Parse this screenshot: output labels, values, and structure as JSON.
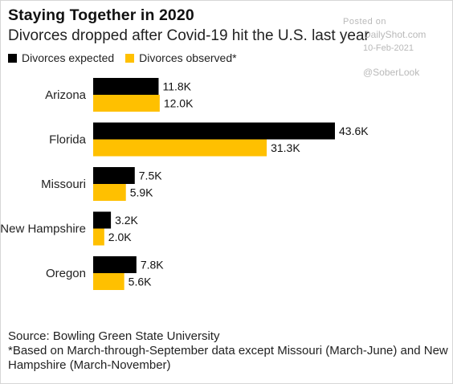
{
  "header": {
    "title": "Staying Together in 2020",
    "subtitle": "Divorces dropped after Covid-19 hit the U.S. last year"
  },
  "watermark": {
    "posted": "Posted on",
    "site": "DailyShot.com",
    "date": "10-Feb-2021",
    "handle": "@SoberLook"
  },
  "colors": {
    "expected": "#000000",
    "observed": "#ffc000"
  },
  "chart_data": {
    "type": "bar",
    "orientation": "horizontal",
    "categories": [
      "Arizona",
      "Florida",
      "Missouri",
      "New Hampshire",
      "Oregon"
    ],
    "series": [
      {
        "name": "Divorces expected",
        "values": [
          11.8,
          43.6,
          7.5,
          3.2,
          7.8
        ],
        "labels": [
          "11.8K",
          "43.6K",
          "7.5K",
          "3.2K",
          "7.8K"
        ]
      },
      {
        "name": "Divorces observed*",
        "values": [
          12.0,
          31.3,
          5.9,
          2.0,
          5.6
        ],
        "labels": [
          "12.0K",
          "31.3K",
          "5.9K",
          "2.0K",
          "5.6K"
        ]
      }
    ],
    "units": "thousands",
    "legend": "top-left",
    "grid": false
  },
  "footer": {
    "source": "Source: Bowling Green State University",
    "note": "*Based on March-through-September data except Missouri (March-June) and New Hampshire (March-November)"
  }
}
